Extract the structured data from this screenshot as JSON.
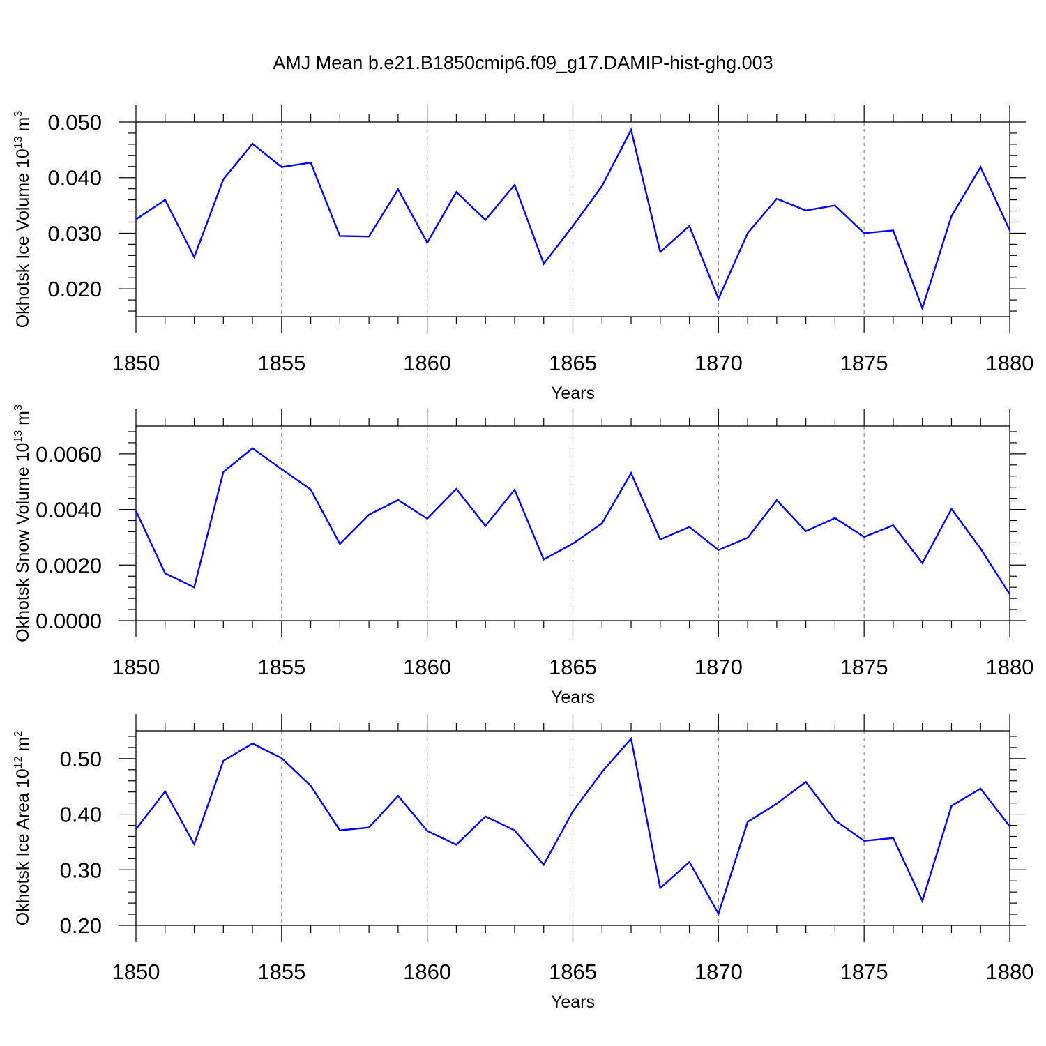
{
  "figure": {
    "title": "AMJ Mean b.e21.B1850cmip6.f09_g17.DAMIP-hist-ghg.003",
    "line_color": "#0000ff"
  },
  "chart_data": [
    {
      "type": "line",
      "title": "",
      "xlabel": "Years",
      "ylabel": "Okhotsk Ice Volume 10",
      "ylabel_exp": "13",
      "ylabel_unit": "m",
      "ylabel_unit_exp": "3",
      "xlim": [
        1850,
        1880
      ],
      "ylim": [
        0.015,
        0.05
      ],
      "grid": "vertical dashed every 5 years",
      "x_ticks": [
        1850,
        1855,
        1860,
        1865,
        1870,
        1875,
        1880
      ],
      "x_tick_labels": [
        "1850",
        "1855",
        "1860",
        "1865",
        "1870",
        "1875",
        "1880"
      ],
      "y_ticks": [
        0.02,
        0.03,
        0.04,
        0.05
      ],
      "y_tick_labels": [
        "0.020",
        "0.030",
        "0.040",
        "0.050"
      ],
      "x": [
        1850,
        1851,
        1852,
        1853,
        1854,
        1855,
        1856,
        1857,
        1858,
        1859,
        1860,
        1861,
        1862,
        1863,
        1864,
        1865,
        1866,
        1867,
        1868,
        1869,
        1870,
        1871,
        1872,
        1873,
        1874,
        1875,
        1876,
        1877,
        1878,
        1879,
        1880
      ],
      "series": [
        {
          "values": [
            0.0325,
            0.036,
            0.0257,
            0.0397,
            0.0461,
            0.0419,
            0.0427,
            0.0295,
            0.0294,
            0.0379,
            0.0283,
            0.0374,
            0.0324,
            0.0387,
            0.0245,
            0.0313,
            0.0385,
            0.0486,
            0.0266,
            0.0313,
            0.0182,
            0.03,
            0.0362,
            0.0341,
            0.035,
            0.03,
            0.0305,
            0.0165,
            0.0331,
            0.0419,
            0.0305
          ]
        }
      ]
    },
    {
      "type": "line",
      "title": "",
      "xlabel": "Years",
      "ylabel": "Okhotsk Snow Volume 10",
      "ylabel_exp": "13",
      "ylabel_unit": "m",
      "ylabel_unit_exp": "3",
      "xlim": [
        1850,
        1880
      ],
      "ylim": [
        0.0,
        0.007
      ],
      "grid": "vertical dashed every 5 years",
      "x_ticks": [
        1850,
        1855,
        1860,
        1865,
        1870,
        1875,
        1880
      ],
      "x_tick_labels": [
        "1850",
        "1855",
        "1860",
        "1865",
        "1870",
        "1875",
        "1880"
      ],
      "y_ticks": [
        0.0,
        0.002,
        0.004,
        0.006
      ],
      "y_tick_labels": [
        "0.0000",
        "0.0020",
        "0.0040",
        "0.0060"
      ],
      "x": [
        1850,
        1851,
        1852,
        1853,
        1854,
        1855,
        1856,
        1857,
        1858,
        1859,
        1860,
        1861,
        1862,
        1863,
        1864,
        1865,
        1866,
        1867,
        1868,
        1869,
        1870,
        1871,
        1872,
        1873,
        1874,
        1875,
        1876,
        1877,
        1878,
        1879,
        1880
      ],
      "series": [
        {
          "values": [
            0.00395,
            0.0017,
            0.0012,
            0.00535,
            0.0062,
            0.00545,
            0.00472,
            0.00276,
            0.00381,
            0.00434,
            0.00367,
            0.00474,
            0.00341,
            0.00471,
            0.0022,
            0.00277,
            0.0035,
            0.00531,
            0.00292,
            0.00337,
            0.00254,
            0.00298,
            0.00433,
            0.00322,
            0.00369,
            0.00301,
            0.00343,
            0.00207,
            0.00402,
            0.00259,
            0.00095
          ]
        }
      ]
    },
    {
      "type": "line",
      "title": "",
      "xlabel": "Years",
      "ylabel": "Okhotsk Ice Area 10",
      "ylabel_exp": "12",
      "ylabel_unit": "m",
      "ylabel_unit_exp": "2",
      "xlim": [
        1850,
        1880
      ],
      "ylim": [
        0.2,
        0.55
      ],
      "grid": "vertical dashed every 5 years",
      "x_ticks": [
        1850,
        1855,
        1860,
        1865,
        1870,
        1875,
        1880
      ],
      "x_tick_labels": [
        "1850",
        "1855",
        "1860",
        "1865",
        "1870",
        "1875",
        "1880"
      ],
      "y_ticks": [
        0.2,
        0.3,
        0.4,
        0.5
      ],
      "y_tick_labels": [
        "0.20",
        "0.30",
        "0.40",
        "0.50"
      ],
      "x": [
        1850,
        1851,
        1852,
        1853,
        1854,
        1855,
        1856,
        1857,
        1858,
        1859,
        1860,
        1861,
        1862,
        1863,
        1864,
        1865,
        1866,
        1867,
        1868,
        1869,
        1870,
        1871,
        1872,
        1873,
        1874,
        1875,
        1876,
        1877,
        1878,
        1879,
        1880
      ],
      "series": [
        {
          "values": [
            0.373,
            0.441,
            0.346,
            0.496,
            0.527,
            0.501,
            0.451,
            0.371,
            0.376,
            0.433,
            0.37,
            0.345,
            0.396,
            0.371,
            0.309,
            0.405,
            0.476,
            0.536,
            0.267,
            0.314,
            0.221,
            0.386,
            0.419,
            0.458,
            0.389,
            0.352,
            0.357,
            0.244,
            0.415,
            0.446,
            0.378
          ]
        }
      ]
    }
  ]
}
